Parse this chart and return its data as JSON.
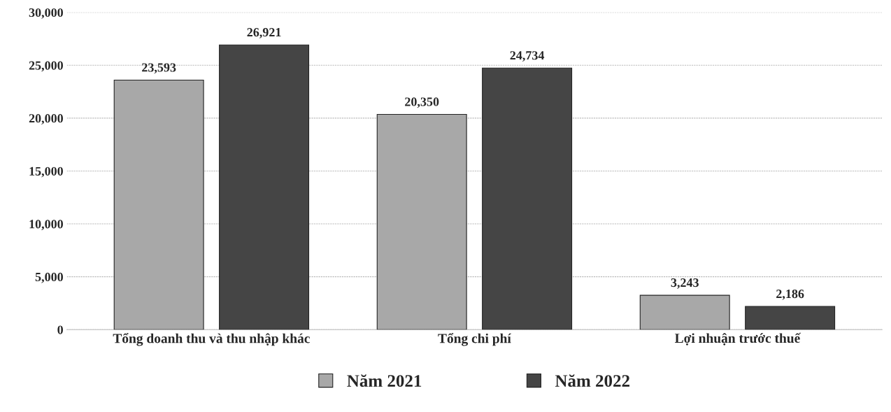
{
  "chart_data": {
    "type": "bar",
    "categories": [
      "Tổng doanh thu và thu nhập khác",
      "Tổng chi phí",
      "Lợi nhuận trước thuế"
    ],
    "series": [
      {
        "name": "Năm 2021",
        "color": "#a8a8a8",
        "values": [
          23593,
          20350,
          3243
        ]
      },
      {
        "name": "Năm 2022",
        "color": "#454545",
        "values": [
          26921,
          24734,
          2186
        ]
      }
    ],
    "ylim": [
      0,
      30000
    ],
    "yticks": [
      {
        "value": 0,
        "label": "0"
      },
      {
        "value": 5000,
        "label": "5,000"
      },
      {
        "value": 10000,
        "label": "10,000"
      },
      {
        "value": 15000,
        "label": "15,000"
      },
      {
        "value": 20000,
        "label": "20,000"
      },
      {
        "value": 25000,
        "label": "25,000"
      },
      {
        "value": 30000,
        "label": "30,000"
      }
    ],
    "value_labels": [
      [
        "23,593",
        "20,350",
        "3,243"
      ],
      [
        "26,921",
        "24,734",
        "2,186"
      ]
    ],
    "grid": "y",
    "legend": "bottom"
  }
}
